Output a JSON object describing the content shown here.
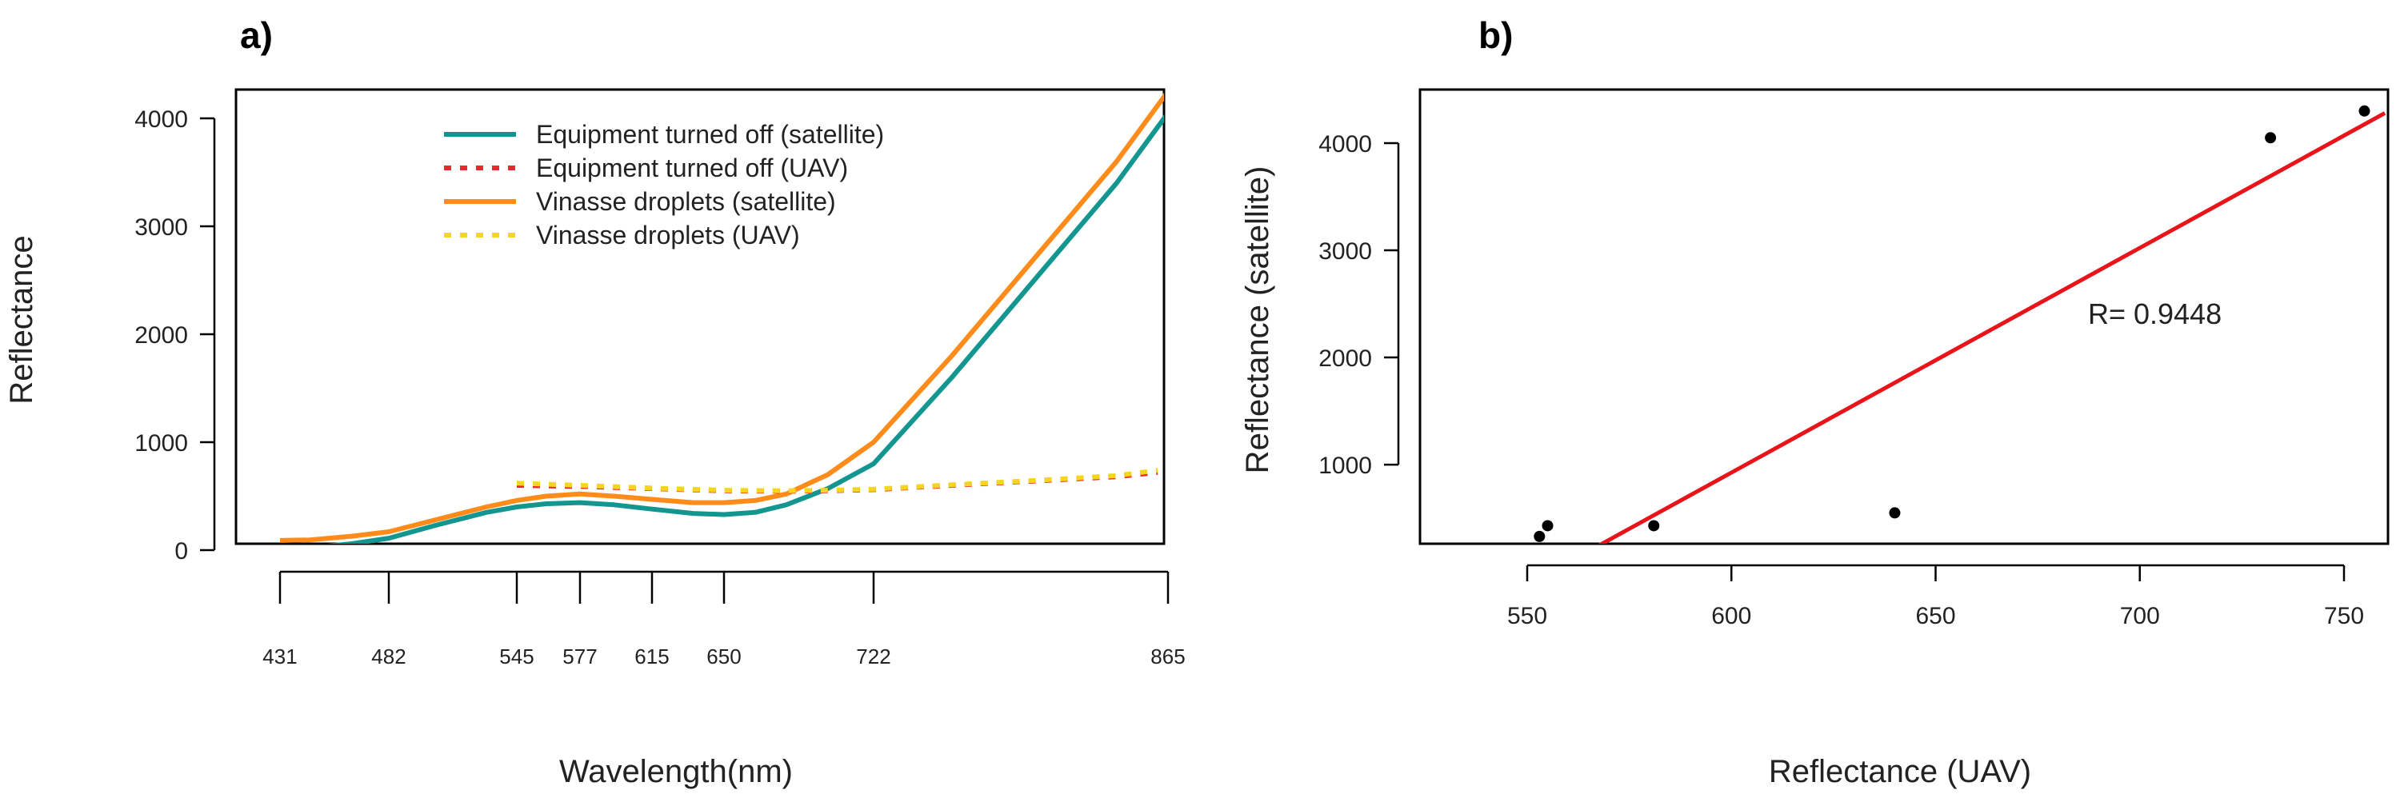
{
  "chart_data": [
    {
      "type": "line",
      "panel_label": "a)",
      "xlabel": "Wavelength(nm)",
      "ylabel": "Reflectance",
      "x_ticks": [
        "431",
        "482",
        "545",
        "577",
        "615",
        "650",
        "722",
        "865"
      ],
      "y_ticks": [
        "0",
        "1000",
        "2000",
        "3000",
        "4000"
      ],
      "ylim": [
        0,
        4000
      ],
      "legend_position": "top-center",
      "series": [
        {
          "name": "Equipment turned off (satellite)",
          "color": "#13968f",
          "style": "solid",
          "x": [
            431,
            445,
            465,
            482,
            505,
            530,
            545,
            560,
            577,
            595,
            615,
            635,
            650,
            665,
            680,
            700,
            722,
            760,
            800,
            840,
            865
          ],
          "values": [
            20,
            22,
            60,
            110,
            230,
            350,
            400,
            430,
            440,
            420,
            380,
            340,
            330,
            350,
            420,
            570,
            800,
            1600,
            2500,
            3400,
            4050
          ]
        },
        {
          "name": "Equipment turned off (UAV)",
          "color": "#e8282a",
          "style": "dotted",
          "x": [
            545,
            577,
            615,
            650,
            680,
            700,
            722,
            760,
            800,
            840,
            860
          ],
          "values": [
            600,
            590,
            570,
            550,
            545,
            550,
            560,
            600,
            640,
            680,
            720
          ]
        },
        {
          "name": "Vinasse droplets (satellite)",
          "color": "#ff8c1a",
          "style": "solid",
          "x": [
            431,
            445,
            465,
            482,
            505,
            530,
            545,
            560,
            577,
            595,
            615,
            635,
            650,
            665,
            680,
            700,
            722,
            760,
            800,
            840,
            865
          ],
          "values": [
            90,
            95,
            130,
            170,
            280,
            400,
            460,
            500,
            520,
            500,
            470,
            440,
            440,
            460,
            520,
            700,
            1000,
            1800,
            2700,
            3600,
            4250
          ]
        },
        {
          "name": "Vinasse droplets (UAV)",
          "color": "#f5d61c",
          "style": "dotted",
          "x": [
            545,
            577,
            615,
            650,
            680,
            700,
            722,
            760,
            800,
            840,
            860
          ],
          "values": [
            620,
            600,
            575,
            555,
            550,
            555,
            565,
            605,
            645,
            690,
            740
          ]
        }
      ]
    },
    {
      "type": "scatter",
      "panel_label": "b)",
      "xlabel": "Reflectance (UAV)",
      "ylabel": "Reflectance (satellite)",
      "x_ticks": [
        "550",
        "600",
        "650",
        "700",
        "750"
      ],
      "y_ticks": [
        "1000",
        "2000",
        "3000",
        "4000"
      ],
      "xlim": [
        544,
        760
      ],
      "ylim": [
        150,
        4500
      ],
      "annotation": "R= 0.9448",
      "point_color": "#000000",
      "regression_color": "#e8141a",
      "points": [
        {
          "x": 553,
          "y": 330
        },
        {
          "x": 555,
          "y": 430
        },
        {
          "x": 581,
          "y": 430
        },
        {
          "x": 640,
          "y": 550
        },
        {
          "x": 732,
          "y": 4050
        },
        {
          "x": 755,
          "y": 4300
        }
      ],
      "regression_line": {
        "x": [
          563,
          760
        ],
        "y": [
          150,
          4280
        ]
      }
    }
  ]
}
